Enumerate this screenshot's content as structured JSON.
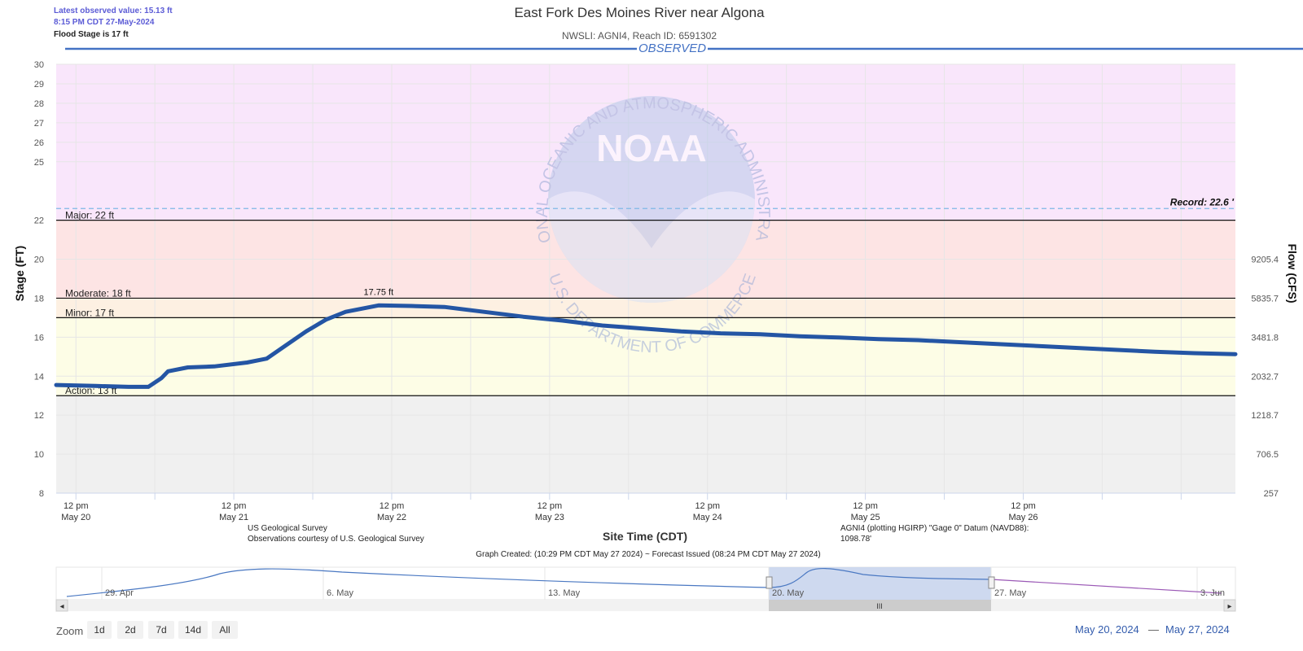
{
  "header": {
    "latest_value": "Latest observed value: 15.13 ft",
    "latest_time": "8:15 PM CDT 27-May-2024",
    "flood_stage": "Flood Stage is 17 ft",
    "title": "East Fork Des Moines River near Algona",
    "subtitle": "NWSLI: AGNI4, Reach ID: 6591302",
    "observed_label": "OBSERVED"
  },
  "chart_data": {
    "type": "line",
    "title": "East Fork Des Moines River near Algona",
    "xlabel": "Site Time (CDT)",
    "ylabel": "Stage (FT)",
    "y2label": "Flow (CFS)",
    "ylim": [
      8,
      30
    ],
    "y_ticks": [
      8,
      10,
      12,
      14,
      16,
      18,
      20,
      22,
      25,
      26,
      27,
      28,
      29,
      30
    ],
    "y2_ticks": [
      {
        "stage": 8,
        "label": "257"
      },
      {
        "stage": 10,
        "label": "706.5"
      },
      {
        "stage": 12,
        "label": "1218.7"
      },
      {
        "stage": 14,
        "label": "2032.7"
      },
      {
        "stage": 16,
        "label": "3481.8"
      },
      {
        "stage": 18,
        "label": "5835.7"
      },
      {
        "stage": 20,
        "label": "9205.4"
      }
    ],
    "x_ticks": [
      {
        "top": "12 pm",
        "bottom": "May 20"
      },
      {
        "top": "12 pm",
        "bottom": "May 21"
      },
      {
        "top": "12 pm",
        "bottom": "May 22"
      },
      {
        "top": "12 pm",
        "bottom": "May 23"
      },
      {
        "top": "12 pm",
        "bottom": "May 24"
      },
      {
        "top": "12 pm",
        "bottom": "May 25"
      },
      {
        "top": "12 pm",
        "bottom": "May 26"
      }
    ],
    "x_range": [
      "2024-05-20 09:00",
      "2024-05-27 20:15"
    ],
    "bands": [
      {
        "name": "major",
        "from": 22,
        "to": 30,
        "color": "#f9e6fb"
      },
      {
        "name": "moderate",
        "from": 18,
        "to": 22,
        "color": "#fde4e4"
      },
      {
        "name": "minor",
        "from": 17,
        "to": 18,
        "color": "#fdf0e2"
      },
      {
        "name": "action",
        "from": 13,
        "to": 17,
        "color": "#fdfde6"
      },
      {
        "name": "normal",
        "from": 8,
        "to": 13,
        "color": "#f0f0f0"
      }
    ],
    "thresholds": [
      {
        "label": "Major: 22 ft",
        "value": 22
      },
      {
        "label": "Moderate: 18 ft",
        "value": 18
      },
      {
        "label": "Minor: 17 ft",
        "value": 17
      },
      {
        "label": "Action: 13 ft",
        "value": 13
      }
    ],
    "record": {
      "label": "Record: 22.6 '",
      "value": 22.6
    },
    "peak": {
      "label": "17.75 ft",
      "time": "2024-05-22 10:00",
      "value": 17.75
    },
    "series": [
      {
        "color": "#2455a4",
        "points": [
          [
            "2024-05-20 09:00",
            13.55
          ],
          [
            "2024-05-20 15:00",
            13.5
          ],
          [
            "2024-05-20 20:00",
            13.45
          ],
          [
            "2024-05-20 23:00",
            13.45
          ],
          [
            "2024-05-21 01:00",
            13.9
          ],
          [
            "2024-05-21 02:00",
            14.25
          ],
          [
            "2024-05-21 05:00",
            14.45
          ],
          [
            "2024-05-21 09:00",
            14.5
          ],
          [
            "2024-05-21 14:00",
            14.7
          ],
          [
            "2024-05-21 17:00",
            14.9
          ],
          [
            "2024-05-21 20:00",
            15.6
          ],
          [
            "2024-05-21 23:00",
            16.3
          ],
          [
            "2024-05-22 02:00",
            16.9
          ],
          [
            "2024-05-22 05:00",
            17.3
          ],
          [
            "2024-05-22 10:00",
            17.63
          ],
          [
            "2024-05-22 15:00",
            17.6
          ],
          [
            "2024-05-22 20:00",
            17.55
          ],
          [
            "2024-05-23 02:00",
            17.3
          ],
          [
            "2024-05-23 08:00",
            17.05
          ],
          [
            "2024-05-23 14:00",
            16.85
          ],
          [
            "2024-05-23 20:00",
            16.6
          ],
          [
            "2024-05-24 02:00",
            16.45
          ],
          [
            "2024-05-24 08:00",
            16.3
          ],
          [
            "2024-05-24 14:00",
            16.2
          ],
          [
            "2024-05-24 20:00",
            16.15
          ],
          [
            "2024-05-25 02:00",
            16.05
          ],
          [
            "2024-05-25 08:00",
            15.98
          ],
          [
            "2024-05-25 14:00",
            15.9
          ],
          [
            "2024-05-25 20:00",
            15.85
          ],
          [
            "2024-05-26 02:00",
            15.75
          ],
          [
            "2024-05-26 08:00",
            15.65
          ],
          [
            "2024-05-26 14:00",
            15.55
          ],
          [
            "2024-05-26 20:00",
            15.45
          ],
          [
            "2024-05-27 02:00",
            15.35
          ],
          [
            "2024-05-27 08:00",
            15.25
          ],
          [
            "2024-05-27 14:00",
            15.18
          ],
          [
            "2024-05-27 20:15",
            15.13
          ]
        ]
      }
    ],
    "legend": "none",
    "grid": true
  },
  "watermark": {
    "logo_text": "NOAA",
    "ring_top": "NATIONAL OCEANIC AND ATMOSPHERIC ADMINISTRATION",
    "ring_bottom": "U.S. DEPARTMENT OF COMMERCE"
  },
  "footer": {
    "source1": "US Geological Survey",
    "source2": "Observations courtesy of U.S. Geological Survey",
    "datum1": "AGNI4 (plotting HGIRP) \"Gage 0\" Datum (NAVD88):",
    "datum2": "1098.78'",
    "created": "Graph Created: (10:29 PM CDT May 27 2024) ~ Forecast Issued (08:24 PM CDT May 27 2024)"
  },
  "navigator": {
    "labels": [
      "29. Apr",
      "6. May",
      "13. May",
      "20. May",
      "27. May",
      "3. Jun"
    ],
    "scroll_grip": "III",
    "arrow_left": "◂",
    "arrow_right": "▸"
  },
  "zoom": {
    "label": "Zoom",
    "buttons": [
      "1d",
      "2d",
      "7d",
      "14d",
      "All"
    ]
  },
  "range": {
    "from": "May 20, 2024",
    "sep": "—",
    "to": "May 27, 2024"
  }
}
